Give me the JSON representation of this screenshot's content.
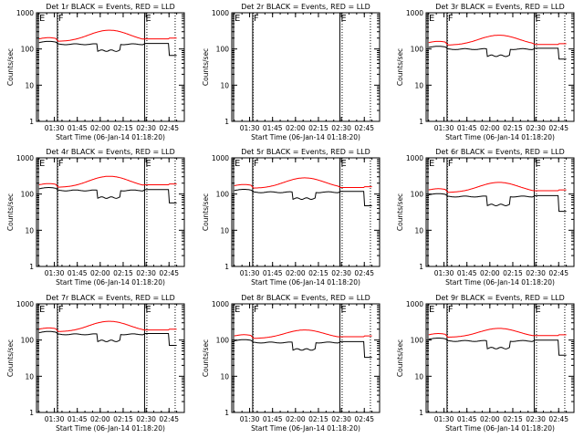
{
  "chart_data": [
    {
      "type": "line",
      "title": "Det 1r BLACK = Events, RED = LLD",
      "xlabel": "Start Time (06-Jan-14 01:18:20)",
      "ylabel": "Counts/sec",
      "x_ticks": [
        "01:30",
        "01:45",
        "02:00",
        "02:15",
        "02:30",
        "02:45"
      ],
      "y_ticks": [
        "1",
        "10",
        "100",
        "1000"
      ],
      "yscale": "log",
      "ylim": [
        1,
        1000
      ],
      "markers": [
        "E",
        "F",
        "E"
      ],
      "has_data": true,
      "series": [
        {
          "color": "#ff0000",
          "base": 190,
          "peak": 330,
          "end": 200
        },
        {
          "color": "#000000",
          "base": 150,
          "peak": 90,
          "end": 70
        }
      ]
    },
    {
      "type": "line",
      "title": "Det 2r BLACK = Events, RED = LLD",
      "xlabel": "Start Time (06-Jan-14 01:18:20)",
      "ylabel": "Counts/sec",
      "x_ticks": [
        "01:30",
        "01:45",
        "02:00",
        "02:15",
        "02:30",
        "02:45"
      ],
      "y_ticks": [
        "1",
        "10",
        "100",
        "1000"
      ],
      "yscale": "log",
      "ylim": [
        1,
        1000
      ],
      "markers": [
        "E",
        "F",
        "E"
      ],
      "has_data": false,
      "series": []
    },
    {
      "type": "line",
      "title": "Det 3r BLACK = Events, RED = LLD",
      "xlabel": "Start Time (06-Jan-14 01:18:20)",
      "ylabel": "Counts/sec",
      "x_ticks": [
        "01:30",
        "01:45",
        "02:00",
        "02:15",
        "02:30",
        "02:45"
      ],
      "y_ticks": [
        "1",
        "10",
        "100",
        "1000"
      ],
      "yscale": "log",
      "ylim": [
        1,
        1000
      ],
      "markers": [
        "E",
        "F",
        "E"
      ],
      "has_data": true,
      "series": [
        {
          "color": "#ff0000",
          "base": 150,
          "peak": 240,
          "end": 140
        },
        {
          "color": "#000000",
          "base": 110,
          "peak": 65,
          "end": 55
        }
      ]
    },
    {
      "type": "line",
      "title": "Det 4r BLACK = Events, RED = LLD",
      "xlabel": "Start Time (06-Jan-14 01:18:20)",
      "ylabel": "Counts/sec",
      "x_ticks": [
        "01:30",
        "01:45",
        "02:00",
        "02:15",
        "02:30",
        "02:45"
      ],
      "y_ticks": [
        "1",
        "10",
        "100",
        "1000"
      ],
      "yscale": "log",
      "ylim": [
        1,
        1000
      ],
      "markers": [
        "E",
        "F",
        "E"
      ],
      "has_data": true,
      "series": [
        {
          "color": "#ff0000",
          "base": 180,
          "peak": 310,
          "end": 190
        },
        {
          "color": "#000000",
          "base": 140,
          "peak": 80,
          "end": 60
        }
      ]
    },
    {
      "type": "line",
      "title": "Det 5r BLACK = Events, RED = LLD",
      "xlabel": "Start Time (06-Jan-14 01:18:20)",
      "ylabel": "Counts/sec",
      "x_ticks": [
        "01:30",
        "01:45",
        "02:00",
        "02:15",
        "02:30",
        "02:45"
      ],
      "y_ticks": [
        "1",
        "10",
        "100",
        "1000"
      ],
      "yscale": "log",
      "ylim": [
        1,
        1000
      ],
      "markers": [
        "E",
        "F",
        "E"
      ],
      "has_data": true,
      "series": [
        {
          "color": "#ff0000",
          "base": 170,
          "peak": 280,
          "end": 160
        },
        {
          "color": "#000000",
          "base": 125,
          "peak": 75,
          "end": 50
        }
      ]
    },
    {
      "type": "line",
      "title": "Det 6r BLACK = Events, RED = LLD",
      "xlabel": "Start Time (06-Jan-14 01:18:20)",
      "ylabel": "Counts/sec",
      "x_ticks": [
        "01:30",
        "01:45",
        "02:00",
        "02:15",
        "02:30",
        "02:45"
      ],
      "y_ticks": [
        "1",
        "10",
        "100",
        "1000"
      ],
      "yscale": "log",
      "ylim": [
        1,
        1000
      ],
      "markers": [
        "E",
        "F",
        "E"
      ],
      "has_data": true,
      "series": [
        {
          "color": "#ff0000",
          "base": 130,
          "peak": 210,
          "end": 130
        },
        {
          "color": "#000000",
          "base": 95,
          "peak": 50,
          "end": 35
        }
      ]
    },
    {
      "type": "line",
      "title": "Det 7r BLACK = Events, RED = LLD",
      "xlabel": "Start Time (06-Jan-14 01:18:20)",
      "ylabel": "Counts/sec",
      "x_ticks": [
        "01:30",
        "01:45",
        "02:00",
        "02:15",
        "02:30",
        "02:45"
      ],
      "y_ticks": [
        "1",
        "10",
        "100",
        "1000"
      ],
      "yscale": "log",
      "ylim": [
        1,
        1000
      ],
      "markers": [
        "E",
        "F",
        "E"
      ],
      "has_data": true,
      "series": [
        {
          "color": "#ff0000",
          "base": 200,
          "peak": 330,
          "end": 200
        },
        {
          "color": "#000000",
          "base": 160,
          "peak": 95,
          "end": 75
        }
      ]
    },
    {
      "type": "line",
      "title": "Det 8r BLACK = Events, RED = LLD",
      "xlabel": "Start Time (06-Jan-14 01:18:20)",
      "ylabel": "Counts/sec",
      "x_ticks": [
        "01:30",
        "01:45",
        "02:00",
        "02:15",
        "02:30",
        "02:45"
      ],
      "y_ticks": [
        "1",
        "10",
        "100",
        "1000"
      ],
      "yscale": "log",
      "ylim": [
        1,
        1000
      ],
      "markers": [
        "E",
        "F",
        "E"
      ],
      "has_data": true,
      "series": [
        {
          "color": "#ff0000",
          "base": 130,
          "peak": 190,
          "end": 130
        },
        {
          "color": "#000000",
          "base": 95,
          "peak": 55,
          "end": 35
        }
      ]
    },
    {
      "type": "line",
      "title": "Det 9r BLACK = Events, RED = LLD",
      "xlabel": "Start Time (06-Jan-14 01:18:20)",
      "ylabel": "Counts/sec",
      "x_ticks": [
        "01:30",
        "01:45",
        "02:00",
        "02:15",
        "02:30",
        "02:45"
      ],
      "y_ticks": [
        "1",
        "10",
        "100",
        "1000"
      ],
      "yscale": "log",
      "ylim": [
        1,
        1000
      ],
      "markers": [
        "E",
        "F",
        "E"
      ],
      "has_data": true,
      "series": [
        {
          "color": "#ff0000",
          "base": 140,
          "peak": 210,
          "end": 140
        },
        {
          "color": "#000000",
          "base": 105,
          "peak": 60,
          "end": 40
        }
      ]
    }
  ]
}
